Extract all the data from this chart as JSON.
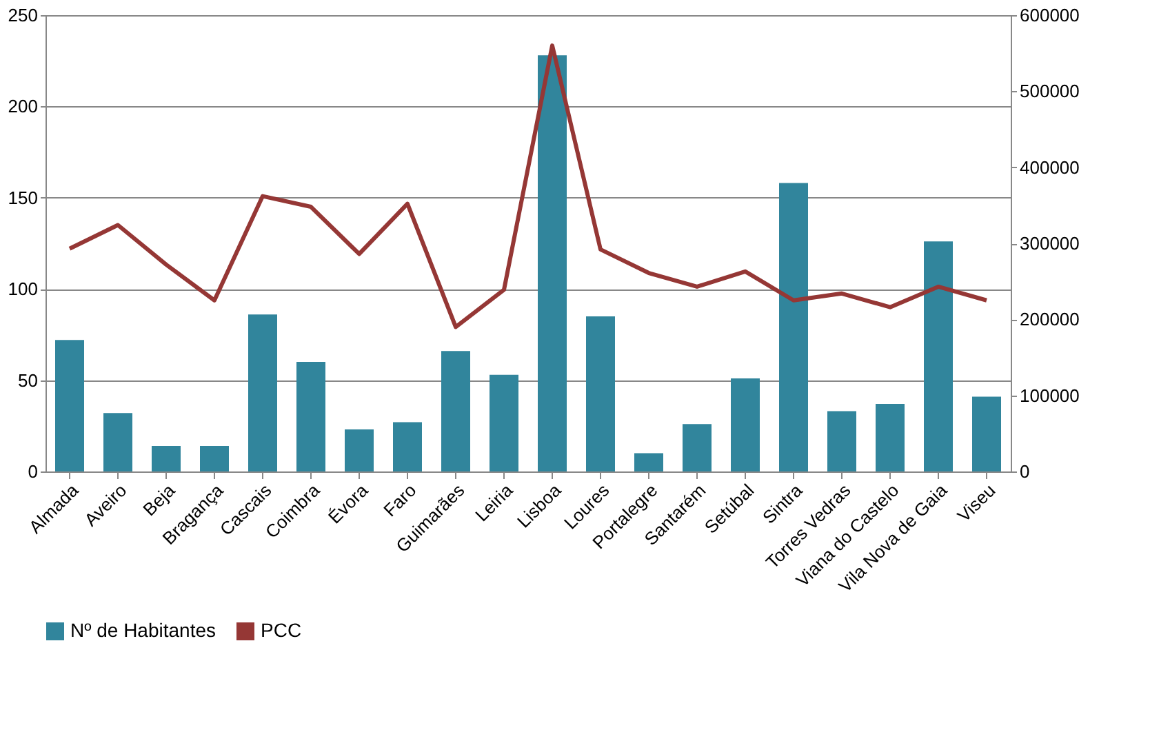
{
  "chart_data": {
    "type": "bar",
    "categories": [
      "Almada",
      "Aveiro",
      "Beja",
      "Bragança",
      "Cascais",
      "Coimbra",
      "Évora",
      "Faro",
      "Guimarães",
      "Leiria",
      "Lisboa",
      "Loures",
      "Portalegre",
      "Santarém",
      "Setúbal",
      "Sintra",
      "Torres Vedras",
      "Viana do Castelo",
      "Vila Nova de Gaia",
      "Viseu"
    ],
    "series": [
      {
        "name": "Nº de Habitantes",
        "color": "#31859c",
        "values": [
          72,
          32,
          14,
          14,
          86,
          60,
          23,
          27,
          66,
          53,
          228,
          85,
          10,
          26,
          51,
          158,
          33,
          37,
          126,
          41
        ]
      },
      {
        "name": "PCC",
        "color": "#953735",
        "type": "line",
        "axis": "y2",
        "values": [
          293000,
          324000,
          272000,
          225000,
          362000,
          348000,
          286000,
          352000,
          190000,
          239000,
          560000,
          292000,
          261000,
          243000,
          263000,
          225000,
          234000,
          216000,
          243000,
          225000
        ]
      }
    ],
    "ylim": [
      0,
      250
    ],
    "yticks": [
      0,
      50,
      100,
      150,
      200,
      250
    ],
    "y2lim": [
      0,
      600000
    ],
    "y2ticks": [
      0,
      100000,
      200000,
      300000,
      400000,
      500000,
      600000
    ],
    "grid": "y",
    "legend": "bottom",
    "marker": "none",
    "line_style": "solid"
  }
}
